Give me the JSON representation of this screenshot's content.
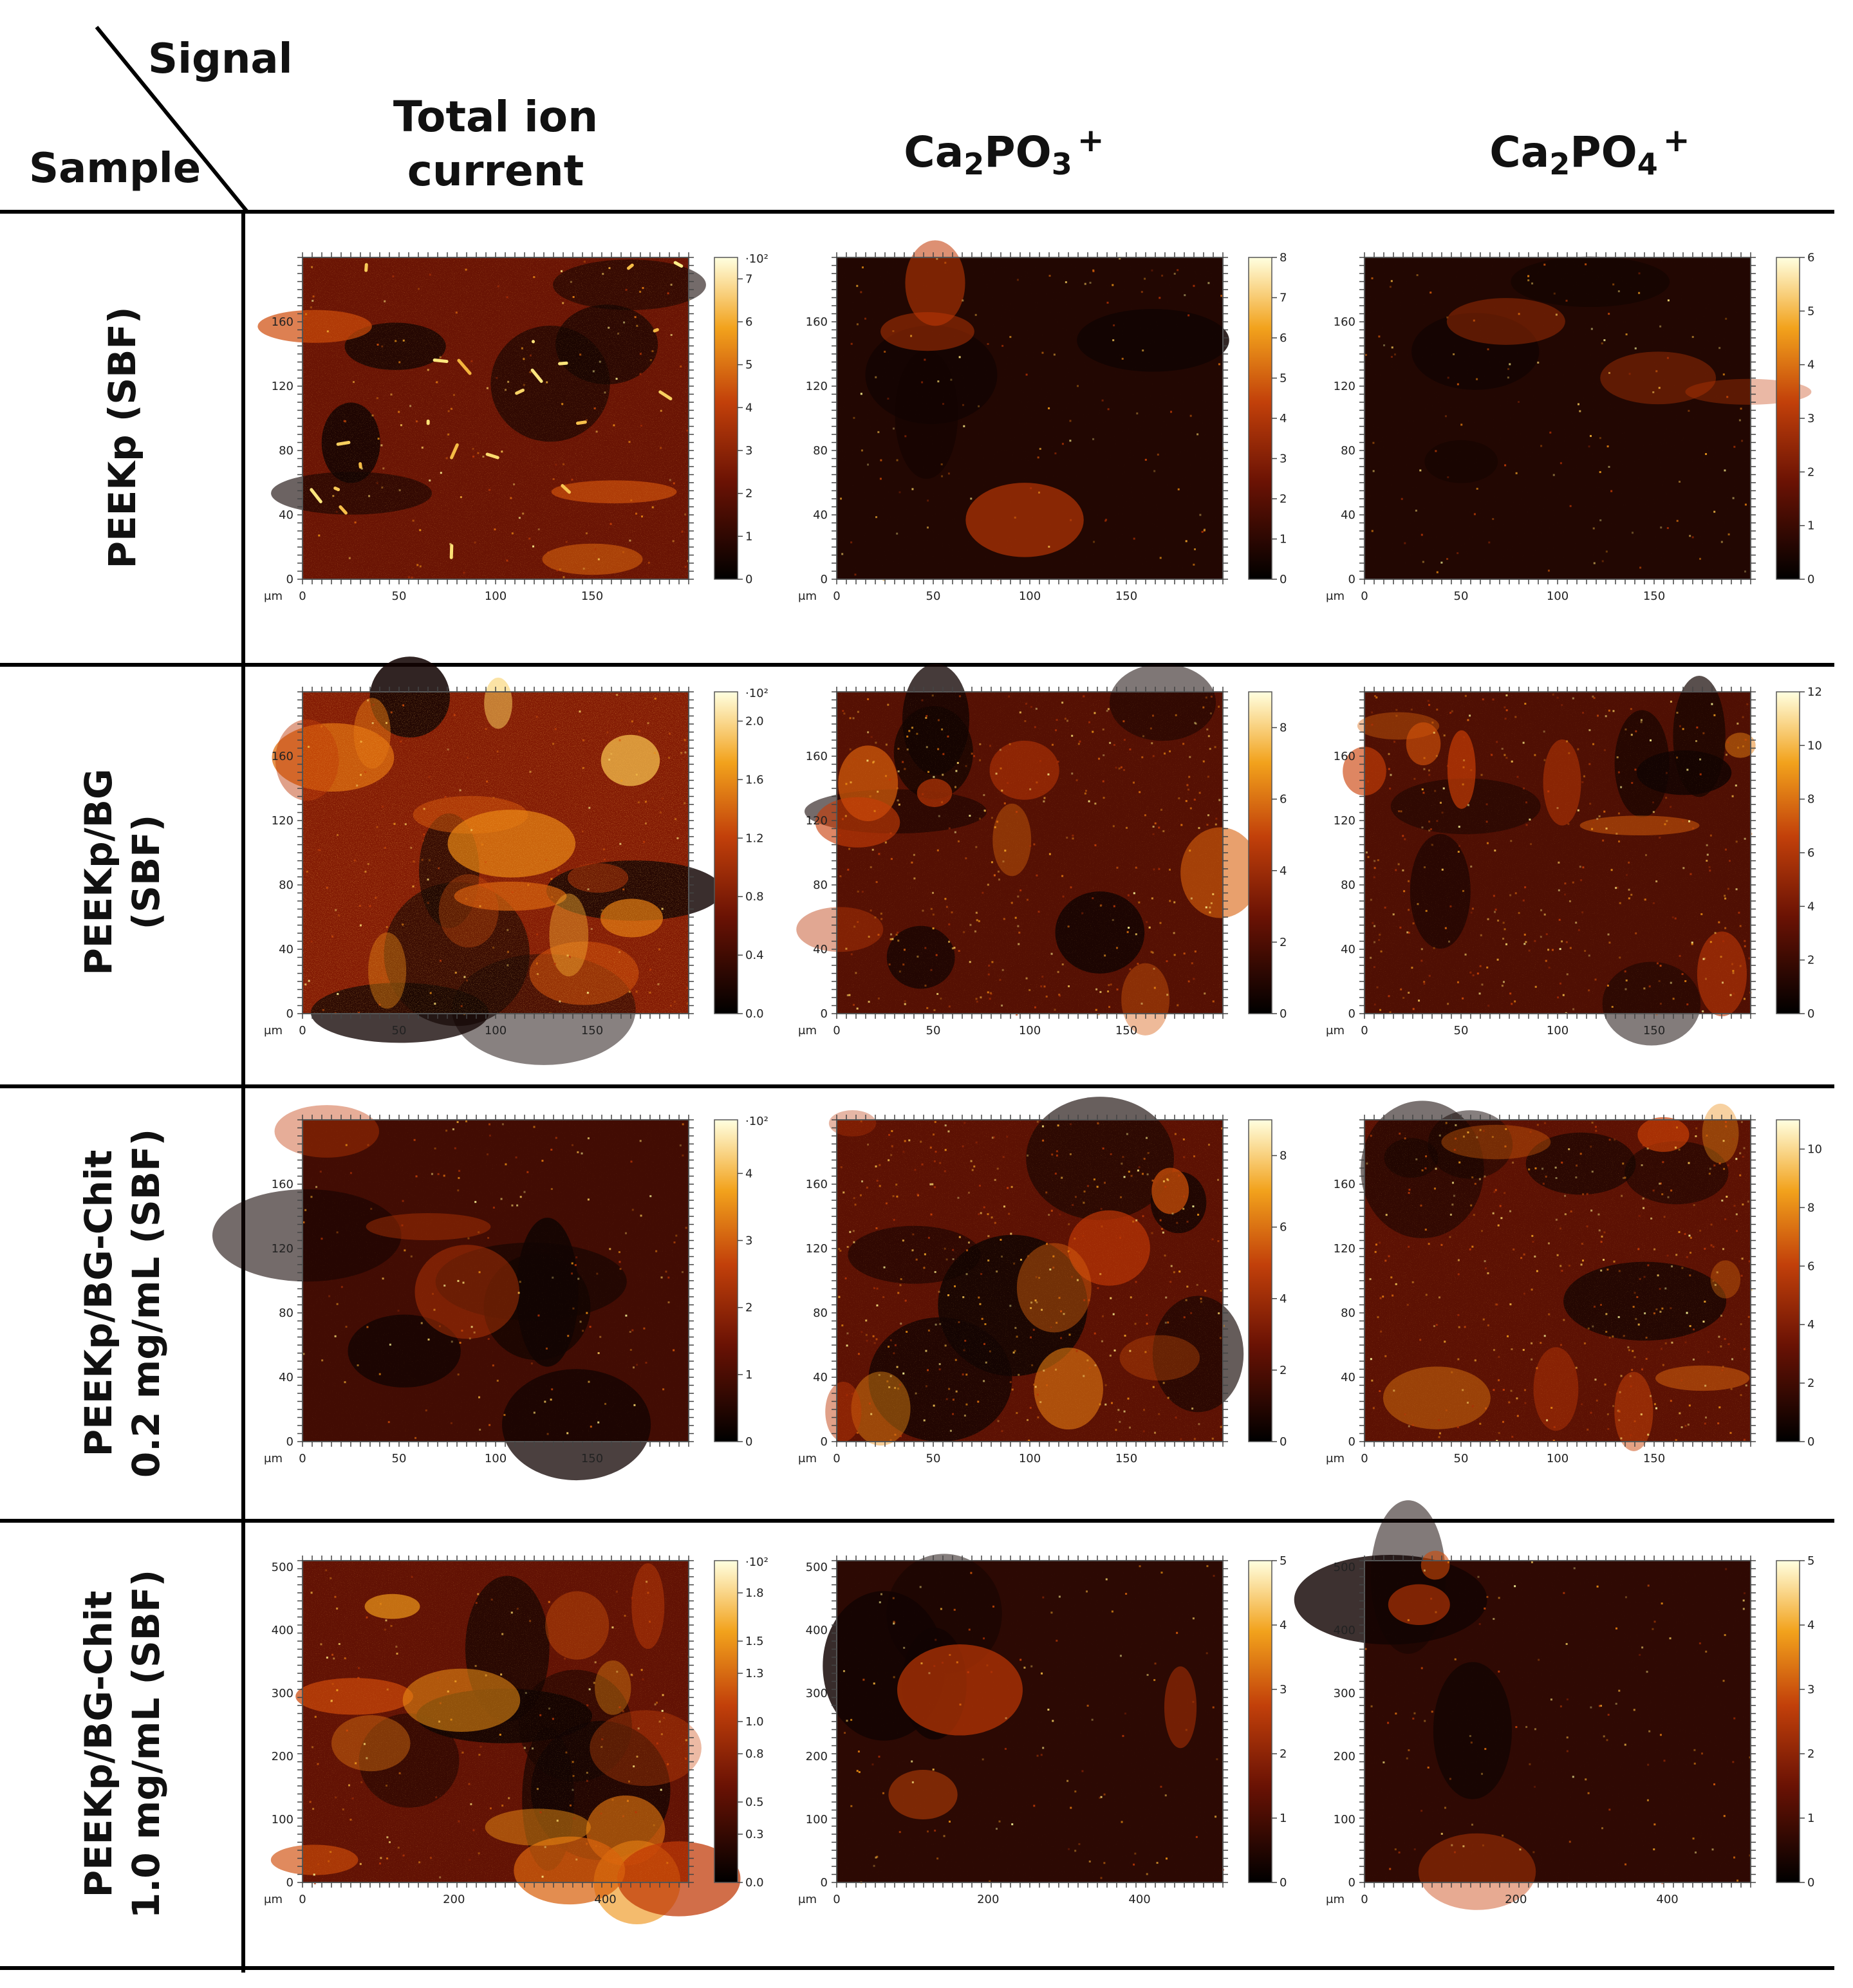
{
  "header": {
    "signal_label": "Signal",
    "sample_label": "Sample",
    "columns": [
      {
        "line1": "Total ion",
        "line2": "current"
      },
      {
        "base": "Ca",
        "sub1": "2",
        "mid": "PO",
        "sub2": "3",
        "charge": "+"
      },
      {
        "base": "Ca",
        "sub1": "2",
        "mid": "PO",
        "sub2": "4",
        "charge": "+"
      }
    ]
  },
  "rows": [
    {
      "label_lines": [
        "PEEKp (SBF)"
      ]
    },
    {
      "label_lines": [
        "PEEKp/BG",
        "(SBF)"
      ]
    },
    {
      "label_lines": [
        "PEEKp/BG-Chit",
        "0.2 mg/mL (SBF)"
      ]
    },
    {
      "label_lines": [
        "PEEKp/BG-Chit",
        "1.0 mg/mL (SBF)"
      ]
    }
  ],
  "axis_unit": "μm",
  "panels": [
    {
      "row": 0,
      "col": 0,
      "x_ticks": [
        "0",
        "50",
        "100",
        "150"
      ],
      "y_ticks": [
        "0",
        "40",
        "80",
        "120",
        "160"
      ],
      "axis_max": 200,
      "cbar_ticks": [
        "0",
        "1",
        "2",
        "3",
        "4",
        "5",
        "6",
        "7"
      ],
      "cbar_top_label": "·10²",
      "cbar_max": 7.5,
      "intensity": 0.55,
      "features": "streaks",
      "seed": 11
    },
    {
      "row": 0,
      "col": 1,
      "x_ticks": [
        "0",
        "50",
        "100",
        "150"
      ],
      "y_ticks": [
        "0",
        "40",
        "80",
        "120",
        "160"
      ],
      "axis_max": 200,
      "cbar_ticks": [
        "0",
        "1",
        "2",
        "3",
        "4",
        "5",
        "6",
        "7",
        "8"
      ],
      "cbar_top_label": "",
      "cbar_max": 8,
      "intensity": 0.1,
      "features": "sparse",
      "seed": 23
    },
    {
      "row": 0,
      "col": 2,
      "x_ticks": [
        "0",
        "50",
        "100",
        "150"
      ],
      "y_ticks": [
        "0",
        "40",
        "80",
        "120",
        "160"
      ],
      "axis_max": 200,
      "cbar_ticks": [
        "0",
        "1",
        "2",
        "3",
        "4",
        "5",
        "6"
      ],
      "cbar_top_label": "",
      "cbar_max": 6,
      "intensity": 0.1,
      "features": "sparse",
      "seed": 37
    },
    {
      "row": 1,
      "col": 0,
      "x_ticks": [
        "0",
        "50",
        "100",
        "150"
      ],
      "y_ticks": [
        "0",
        "40",
        "80",
        "120",
        "160"
      ],
      "axis_max": 200,
      "cbar_ticks": [
        "0.0",
        "0.4",
        "0.8",
        "1.2",
        "1.6",
        "2.0"
      ],
      "cbar_top_label": "·10²",
      "cbar_max": 2.2,
      "intensity": 0.7,
      "features": "blobs",
      "seed": 41
    },
    {
      "row": 1,
      "col": 1,
      "x_ticks": [
        "0",
        "50",
        "100",
        "150"
      ],
      "y_ticks": [
        "0",
        "40",
        "80",
        "120",
        "160"
      ],
      "axis_max": 200,
      "cbar_ticks": [
        "0",
        "2",
        "4",
        "6",
        "8"
      ],
      "cbar_top_label": "",
      "cbar_max": 9,
      "intensity": 0.42,
      "features": "grainy",
      "seed": 53
    },
    {
      "row": 1,
      "col": 2,
      "x_ticks": [
        "0",
        "50",
        "100",
        "150"
      ],
      "y_ticks": [
        "0",
        "40",
        "80",
        "120",
        "160"
      ],
      "axis_max": 200,
      "cbar_ticks": [
        "0",
        "2",
        "4",
        "6",
        "8",
        "10",
        "12"
      ],
      "cbar_top_label": "",
      "cbar_max": 12,
      "intensity": 0.38,
      "features": "grainy",
      "seed": 67
    },
    {
      "row": 2,
      "col": 0,
      "x_ticks": [
        "0",
        "50",
        "100",
        "150"
      ],
      "y_ticks": [
        "0",
        "40",
        "80",
        "120",
        "160"
      ],
      "axis_max": 200,
      "cbar_ticks": [
        "0",
        "1",
        "2",
        "3",
        "4"
      ],
      "cbar_top_label": "·10²",
      "cbar_max": 4.8,
      "intensity": 0.3,
      "features": "dark",
      "seed": 71
    },
    {
      "row": 2,
      "col": 1,
      "x_ticks": [
        "0",
        "50",
        "100",
        "150"
      ],
      "y_ticks": [
        "0",
        "40",
        "80",
        "120",
        "160"
      ],
      "axis_max": 200,
      "cbar_ticks": [
        "0",
        "2",
        "4",
        "6",
        "8"
      ],
      "cbar_top_label": "",
      "cbar_max": 9,
      "intensity": 0.46,
      "features": "grainy",
      "seed": 83
    },
    {
      "row": 2,
      "col": 2,
      "x_ticks": [
        "0",
        "50",
        "100",
        "150"
      ],
      "y_ticks": [
        "0",
        "40",
        "80",
        "120",
        "160"
      ],
      "axis_max": 200,
      "cbar_ticks": [
        "0",
        "2",
        "4",
        "6",
        "8",
        "10"
      ],
      "cbar_top_label": "",
      "cbar_max": 11,
      "intensity": 0.46,
      "features": "grainy",
      "seed": 97
    },
    {
      "row": 3,
      "col": 0,
      "x_ticks": [
        "0",
        "200",
        "400"
      ],
      "y_ticks": [
        "0",
        "100",
        "200",
        "300",
        "400",
        "500"
      ],
      "axis_max": 510,
      "cbar_ticks": [
        "0.0",
        "0.3",
        "0.5",
        "0.8",
        "1.0",
        "1.3",
        "1.5",
        "1.8"
      ],
      "cbar_top_label": "·10²",
      "cbar_max": 2,
      "intensity": 0.5,
      "features": "blobs",
      "seed": 103
    },
    {
      "row": 3,
      "col": 1,
      "x_ticks": [
        "0",
        "200",
        "400"
      ],
      "y_ticks": [
        "0",
        "100",
        "200",
        "300",
        "400",
        "500"
      ],
      "axis_max": 510,
      "cbar_ticks": [
        "0",
        "1",
        "2",
        "3",
        "4",
        "5"
      ],
      "cbar_top_label": "",
      "cbar_max": 5,
      "intensity": 0.16,
      "features": "sparse",
      "seed": 109
    },
    {
      "row": 3,
      "col": 2,
      "x_ticks": [
        "0",
        "200",
        "400"
      ],
      "y_ticks": [
        "0",
        "100",
        "200",
        "300",
        "400",
        "500"
      ],
      "axis_max": 510,
      "cbar_ticks": [
        "0",
        "1",
        "2",
        "3",
        "4",
        "5"
      ],
      "cbar_top_label": "",
      "cbar_max": 5,
      "intensity": 0.18,
      "features": "sparse",
      "seed": 113
    }
  ],
  "colors": {
    "line": "#000000",
    "map_dark": "#120402",
    "map_mid": "#a32a05",
    "map_bright": "#ffff9e"
  }
}
